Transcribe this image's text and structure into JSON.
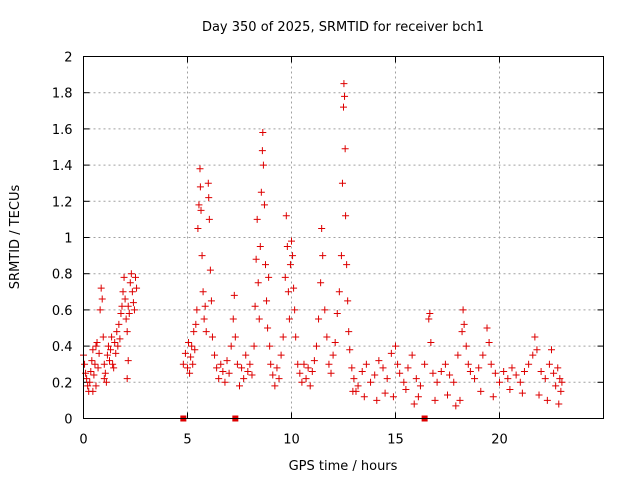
{
  "chart_data": {
    "type": "scatter",
    "title": "Day 350 of 2025, SRMTID for receiver bch1",
    "xlabel": "GPS time / hours",
    "ylabel": "SRMTID / TECUs",
    "xlim": [
      0,
      25
    ],
    "ylim": [
      0,
      2
    ],
    "grid": true,
    "marker_color": "#dd0000",
    "x_ticks": [
      0,
      5,
      10,
      15,
      20
    ],
    "y_ticks": [
      0,
      0.2,
      0.4,
      0.6,
      0.8,
      1,
      1.2,
      1.4,
      1.6,
      1.8,
      2
    ],
    "x_tick_labels": [
      "0",
      "5",
      "10",
      "15",
      "20"
    ],
    "y_tick_labels": [
      "0",
      "0.2",
      "0.4",
      "0.6",
      "0.8",
      "1",
      "1.2",
      "1.4",
      "1.6",
      "1.8",
      "2"
    ],
    "zero_markers": [
      [
        4.8,
        0
      ],
      [
        7.3,
        0
      ],
      [
        16.4,
        0
      ]
    ],
    "points": [
      [
        0.0,
        0.35
      ],
      [
        0.05,
        0.3
      ],
      [
        0.1,
        0.25
      ],
      [
        0.15,
        0.22
      ],
      [
        0.2,
        0.18
      ],
      [
        0.25,
        0.15
      ],
      [
        0.3,
        0.2
      ],
      [
        0.35,
        0.26
      ],
      [
        0.4,
        0.32
      ],
      [
        0.45,
        0.38
      ],
      [
        0.5,
        0.24
      ],
      [
        0.55,
        0.3
      ],
      [
        0.6,
        0.4
      ],
      [
        0.65,
        0.42
      ],
      [
        0.7,
        0.28
      ],
      [
        0.75,
        0.36
      ],
      [
        0.8,
        0.6
      ],
      [
        0.85,
        0.72
      ],
      [
        0.9,
        0.66
      ],
      [
        0.95,
        0.45
      ],
      [
        1.0,
        0.3
      ],
      [
        1.05,
        0.25
      ],
      [
        1.1,
        0.2
      ],
      [
        1.15,
        0.35
      ],
      [
        1.2,
        0.4
      ],
      [
        1.25,
        0.32
      ],
      [
        1.3,
        0.38
      ],
      [
        1.35,
        0.45
      ],
      [
        1.4,
        0.3
      ],
      [
        1.45,
        0.28
      ],
      [
        1.5,
        0.42
      ],
      [
        1.55,
        0.36
      ],
      [
        1.6,
        0.48
      ],
      [
        1.65,
        0.4
      ],
      [
        1.7,
        0.52
      ],
      [
        1.75,
        0.44
      ],
      [
        1.8,
        0.58
      ],
      [
        1.85,
        0.62
      ],
      [
        1.9,
        0.7
      ],
      [
        1.95,
        0.78
      ],
      [
        2.0,
        0.66
      ],
      [
        2.05,
        0.55
      ],
      [
        2.1,
        0.48
      ],
      [
        2.15,
        0.62
      ],
      [
        2.2,
        0.58
      ],
      [
        2.25,
        0.75
      ],
      [
        2.3,
        0.8
      ],
      [
        2.35,
        0.7
      ],
      [
        2.4,
        0.64
      ],
      [
        2.45,
        0.6
      ],
      [
        2.5,
        0.78
      ],
      [
        2.55,
        0.72
      ],
      [
        2.1,
        0.22
      ],
      [
        2.15,
        0.32
      ],
      [
        0.45,
        0.15
      ],
      [
        0.6,
        0.18
      ],
      [
        1.0,
        0.22
      ],
      [
        4.8,
        0.3
      ],
      [
        4.9,
        0.36
      ],
      [
        5.0,
        0.28
      ],
      [
        5.05,
        0.42
      ],
      [
        5.1,
        0.25
      ],
      [
        5.15,
        0.34
      ],
      [
        5.2,
        0.4
      ],
      [
        5.25,
        0.3
      ],
      [
        5.3,
        0.48
      ],
      [
        5.35,
        0.38
      ],
      [
        5.4,
        0.52
      ],
      [
        5.45,
        0.6
      ],
      [
        5.5,
        1.05
      ],
      [
        5.55,
        1.18
      ],
      [
        5.6,
        1.38
      ],
      [
        5.62,
        1.28
      ],
      [
        5.65,
        1.15
      ],
      [
        5.7,
        0.9
      ],
      [
        5.75,
        0.7
      ],
      [
        5.8,
        0.55
      ],
      [
        5.85,
        0.62
      ],
      [
        5.9,
        0.48
      ],
      [
        6.0,
        1.3
      ],
      [
        6.02,
        1.22
      ],
      [
        6.05,
        1.1
      ],
      [
        6.1,
        0.82
      ],
      [
        6.15,
        0.65
      ],
      [
        6.2,
        0.45
      ],
      [
        6.3,
        0.35
      ],
      [
        6.4,
        0.28
      ],
      [
        6.5,
        0.22
      ],
      [
        6.6,
        0.3
      ],
      [
        6.7,
        0.26
      ],
      [
        6.8,
        0.2
      ],
      [
        6.9,
        0.32
      ],
      [
        7.0,
        0.25
      ],
      [
        7.1,
        0.4
      ],
      [
        7.2,
        0.55
      ],
      [
        7.25,
        0.68
      ],
      [
        7.3,
        0.45
      ],
      [
        7.4,
        0.3
      ],
      [
        7.5,
        0.18
      ],
      [
        7.6,
        0.28
      ],
      [
        7.7,
        0.22
      ],
      [
        7.8,
        0.35
      ],
      [
        7.9,
        0.26
      ],
      [
        8.0,
        0.3
      ],
      [
        8.1,
        0.24
      ],
      [
        8.2,
        0.4
      ],
      [
        8.25,
        0.62
      ],
      [
        8.3,
        0.88
      ],
      [
        8.35,
        1.1
      ],
      [
        8.4,
        0.75
      ],
      [
        8.45,
        0.55
      ],
      [
        8.5,
        0.95
      ],
      [
        8.55,
        1.25
      ],
      [
        8.6,
        1.48
      ],
      [
        8.62,
        1.58
      ],
      [
        8.65,
        1.4
      ],
      [
        8.7,
        1.18
      ],
      [
        8.75,
        0.85
      ],
      [
        8.8,
        0.65
      ],
      [
        8.85,
        0.5
      ],
      [
        8.9,
        0.78
      ],
      [
        8.95,
        0.4
      ],
      [
        9.0,
        0.3
      ],
      [
        9.1,
        0.24
      ],
      [
        9.2,
        0.18
      ],
      [
        9.3,
        0.28
      ],
      [
        9.4,
        0.22
      ],
      [
        9.5,
        0.35
      ],
      [
        9.6,
        0.45
      ],
      [
        9.7,
        0.78
      ],
      [
        9.75,
        1.12
      ],
      [
        9.8,
        0.95
      ],
      [
        9.85,
        0.7
      ],
      [
        9.9,
        0.55
      ],
      [
        9.95,
        0.85
      ],
      [
        10.0,
        0.98
      ],
      [
        10.05,
        0.9
      ],
      [
        10.1,
        0.72
      ],
      [
        10.15,
        0.6
      ],
      [
        10.2,
        0.45
      ],
      [
        10.3,
        0.3
      ],
      [
        10.4,
        0.25
      ],
      [
        10.5,
        0.2
      ],
      [
        10.6,
        0.3
      ],
      [
        10.7,
        0.22
      ],
      [
        10.8,
        0.28
      ],
      [
        10.9,
        0.18
      ],
      [
        11.0,
        0.26
      ],
      [
        11.1,
        0.32
      ],
      [
        11.2,
        0.4
      ],
      [
        11.3,
        0.55
      ],
      [
        11.4,
        0.75
      ],
      [
        11.45,
        1.05
      ],
      [
        11.5,
        0.9
      ],
      [
        11.6,
        0.6
      ],
      [
        11.7,
        0.45
      ],
      [
        11.8,
        0.3
      ],
      [
        11.9,
        0.25
      ],
      [
        12.0,
        0.35
      ],
      [
        12.1,
        0.42
      ],
      [
        12.2,
        0.58
      ],
      [
        12.3,
        0.7
      ],
      [
        12.4,
        0.9
      ],
      [
        12.45,
        1.3
      ],
      [
        12.5,
        1.72
      ],
      [
        12.52,
        1.85
      ],
      [
        12.55,
        1.78
      ],
      [
        12.58,
        1.49
      ],
      [
        12.6,
        1.12
      ],
      [
        12.65,
        0.85
      ],
      [
        12.7,
        0.65
      ],
      [
        12.75,
        0.48
      ],
      [
        12.8,
        0.38
      ],
      [
        12.9,
        0.28
      ],
      [
        13.0,
        0.22
      ],
      [
        13.2,
        0.18
      ],
      [
        13.4,
        0.26
      ],
      [
        13.6,
        0.3
      ],
      [
        13.8,
        0.2
      ],
      [
        14.0,
        0.24
      ],
      [
        14.2,
        0.32
      ],
      [
        14.4,
        0.28
      ],
      [
        14.6,
        0.22
      ],
      [
        14.8,
        0.36
      ],
      [
        15.0,
        0.4
      ],
      [
        15.1,
        0.3
      ],
      [
        15.2,
        0.25
      ],
      [
        15.4,
        0.2
      ],
      [
        15.6,
        0.28
      ],
      [
        15.8,
        0.35
      ],
      [
        16.0,
        0.22
      ],
      [
        16.2,
        0.18
      ],
      [
        16.4,
        0.3
      ],
      [
        16.6,
        0.55
      ],
      [
        16.65,
        0.58
      ],
      [
        16.7,
        0.42
      ],
      [
        16.8,
        0.25
      ],
      [
        17.0,
        0.2
      ],
      [
        17.2,
        0.26
      ],
      [
        17.4,
        0.3
      ],
      [
        17.6,
        0.24
      ],
      [
        17.8,
        0.2
      ],
      [
        18.0,
        0.35
      ],
      [
        18.2,
        0.48
      ],
      [
        18.25,
        0.6
      ],
      [
        18.3,
        0.52
      ],
      [
        18.4,
        0.4
      ],
      [
        18.5,
        0.3
      ],
      [
        18.6,
        0.26
      ],
      [
        18.8,
        0.22
      ],
      [
        19.0,
        0.28
      ],
      [
        19.2,
        0.35
      ],
      [
        19.4,
        0.5
      ],
      [
        19.5,
        0.42
      ],
      [
        19.6,
        0.3
      ],
      [
        19.8,
        0.25
      ],
      [
        20.0,
        0.2
      ],
      [
        20.2,
        0.26
      ],
      [
        20.4,
        0.22
      ],
      [
        20.6,
        0.28
      ],
      [
        20.8,
        0.24
      ],
      [
        21.0,
        0.2
      ],
      [
        21.2,
        0.26
      ],
      [
        21.4,
        0.3
      ],
      [
        21.6,
        0.35
      ],
      [
        21.7,
        0.45
      ],
      [
        21.8,
        0.38
      ],
      [
        22.0,
        0.26
      ],
      [
        22.2,
        0.22
      ],
      [
        22.4,
        0.3
      ],
      [
        22.5,
        0.38
      ],
      [
        22.6,
        0.25
      ],
      [
        22.7,
        0.18
      ],
      [
        22.8,
        0.28
      ],
      [
        22.9,
        0.22
      ],
      [
        22.95,
        0.15
      ],
      [
        23.0,
        0.2
      ],
      [
        13.1,
        0.15
      ],
      [
        13.5,
        0.12
      ],
      [
        14.1,
        0.1
      ],
      [
        14.5,
        0.14
      ],
      [
        15.5,
        0.16
      ],
      [
        16.1,
        0.12
      ],
      [
        16.9,
        0.1
      ],
      [
        17.5,
        0.13
      ],
      [
        18.1,
        0.1
      ],
      [
        19.1,
        0.15
      ],
      [
        19.7,
        0.12
      ],
      [
        20.5,
        0.16
      ],
      [
        21.1,
        0.14
      ],
      [
        21.9,
        0.13
      ],
      [
        22.3,
        0.1
      ],
      [
        22.85,
        0.08
      ],
      [
        15.9,
        0.08
      ],
      [
        17.9,
        0.07
      ],
      [
        14.9,
        0.12
      ],
      [
        12.95,
        0.15
      ]
    ]
  }
}
